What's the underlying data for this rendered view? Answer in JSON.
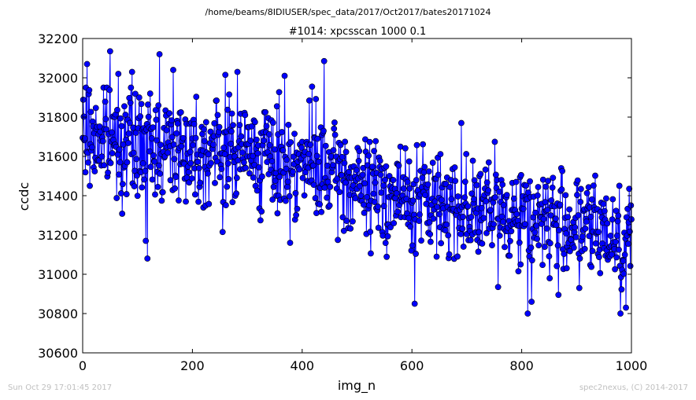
{
  "suptitle": "/home/beams/8IDIUSER/spec_data/2017/Oct2017/bates20171024",
  "footer_left": "Sun Oct 29 17:01:45 2017",
  "footer_right": "spec2nexus, (C) 2014-2017",
  "chart_data": {
    "type": "line",
    "title": "#1014: xpcsscan 1000 0.1",
    "xlabel": "img_n",
    "ylabel": "ccdc",
    "xlim": [
      0,
      1000
    ],
    "ylim": [
      30600,
      32200
    ],
    "xticks": [
      0,
      200,
      400,
      600,
      800,
      1000
    ],
    "yticks": [
      30600,
      30800,
      31000,
      31200,
      31400,
      31600,
      31800,
      32000,
      32200
    ],
    "grid": false,
    "marker": "circle",
    "series_color": "#0000ff",
    "marker_edge_color": "#000000",
    "n_points": 1001,
    "trend": {
      "x": [
        0,
        100,
        200,
        300,
        400,
        500,
        600,
        700,
        800,
        900,
        1000
      ],
      "y": [
        31710,
        31660,
        31640,
        31620,
        31560,
        31450,
        31380,
        31340,
        31310,
        31250,
        31180
      ]
    },
    "spread": 130,
    "notable_points": [
      {
        "x": 8,
        "y": 32070
      },
      {
        "x": 50,
        "y": 32135
      },
      {
        "x": 65,
        "y": 32020
      },
      {
        "x": 90,
        "y": 32030
      },
      {
        "x": 115,
        "y": 31170
      },
      {
        "x": 118,
        "y": 31080
      },
      {
        "x": 140,
        "y": 32120
      },
      {
        "x": 165,
        "y": 32040
      },
      {
        "x": 255,
        "y": 31215
      },
      {
        "x": 260,
        "y": 32015
      },
      {
        "x": 282,
        "y": 32030
      },
      {
        "x": 368,
        "y": 32010
      },
      {
        "x": 378,
        "y": 31160
      },
      {
        "x": 418,
        "y": 31955
      },
      {
        "x": 440,
        "y": 32085
      },
      {
        "x": 605,
        "y": 30850
      },
      {
        "x": 690,
        "y": 31770
      },
      {
        "x": 757,
        "y": 30935
      },
      {
        "x": 811,
        "y": 30800
      },
      {
        "x": 818,
        "y": 30860
      },
      {
        "x": 867,
        "y": 30895
      },
      {
        "x": 905,
        "y": 30930
      },
      {
        "x": 980,
        "y": 30800
      },
      {
        "x": 990,
        "y": 30830
      },
      {
        "x": 996,
        "y": 31435
      }
    ]
  }
}
